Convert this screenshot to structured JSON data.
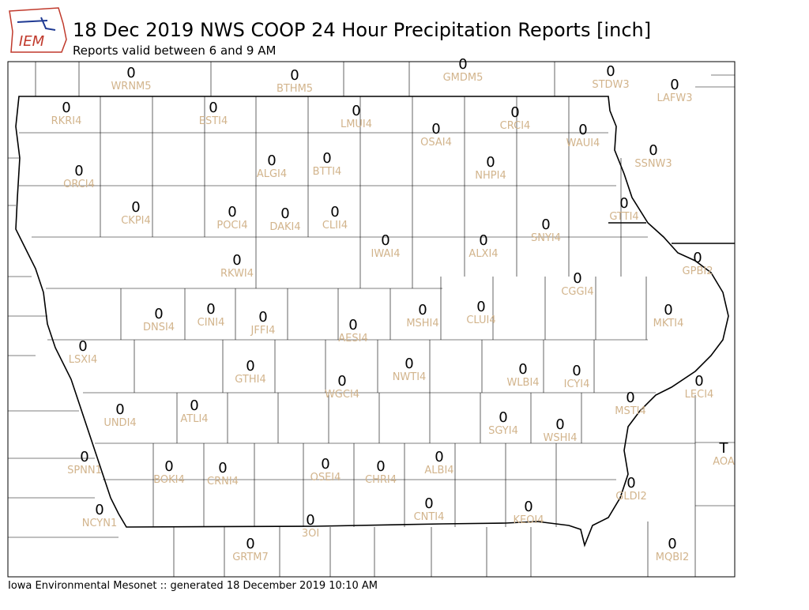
{
  "logo": "IEM",
  "title": "18 Dec 2019 NWS COOP 24 Hour Precipitation Reports [inch]",
  "subtitle": "Reports valid between 6 and 9 AM",
  "footer": "Iowa Environmental Mesonet :: generated 18 December 2019 10:10 AM",
  "stations": [
    {
      "id": "WRNM5",
      "value": 0
    },
    {
      "id": "BTHM5",
      "value": 0
    },
    {
      "id": "GMDM5",
      "value": 0
    },
    {
      "id": "STDW3",
      "value": 0
    },
    {
      "id": "LAFW3",
      "value": 0
    },
    {
      "id": "RKRI4",
      "value": 0
    },
    {
      "id": "ESTI4",
      "value": 0
    },
    {
      "id": "LMUI4",
      "value": 0
    },
    {
      "id": "CRCI4",
      "value": 0
    },
    {
      "id": "OSAI4",
      "value": 0
    },
    {
      "id": "WAUI4",
      "value": 0
    },
    {
      "id": "SSNW3",
      "value": 0
    },
    {
      "id": "ORCI4",
      "value": 0
    },
    {
      "id": "ALGI4",
      "value": 0
    },
    {
      "id": "BTTI4",
      "value": 0
    },
    {
      "id": "NHPI4",
      "value": 0
    },
    {
      "id": "GTTI4",
      "value": 0
    },
    {
      "id": "CKPI4",
      "value": 0
    },
    {
      "id": "POCI4",
      "value": 0
    },
    {
      "id": "DAKI4",
      "value": 0
    },
    {
      "id": "CLII4",
      "value": 0
    },
    {
      "id": "IWAI4",
      "value": 0
    },
    {
      "id": "ALXI4",
      "value": 0
    },
    {
      "id": "SNYI4",
      "value": 0
    },
    {
      "id": "GPBI2",
      "value": 0
    },
    {
      "id": "RKWI4",
      "value": 0
    },
    {
      "id": "CGGI4",
      "value": 0
    },
    {
      "id": "DNSI4",
      "value": 0
    },
    {
      "id": "CINI4",
      "value": 0
    },
    {
      "id": "JFFI4",
      "value": 0
    },
    {
      "id": "AESI4",
      "value": 0
    },
    {
      "id": "MSHI4",
      "value": 0
    },
    {
      "id": "CLUI4",
      "value": 0
    },
    {
      "id": "MKTI4",
      "value": 0
    },
    {
      "id": "LSXI4",
      "value": 0
    },
    {
      "id": "GTHI4",
      "value": 0
    },
    {
      "id": "NWTI4",
      "value": 0
    },
    {
      "id": "WLBI4",
      "value": 0
    },
    {
      "id": "ICYI4",
      "value": 0
    },
    {
      "id": "LECI4",
      "value": 0
    },
    {
      "id": "WGCI4",
      "value": 0
    },
    {
      "id": "MSTI4",
      "value": 0
    },
    {
      "id": "UNDI4",
      "value": 0
    },
    {
      "id": "ATLI4",
      "value": 0
    },
    {
      "id": "SGYI4",
      "value": 0
    },
    {
      "id": "WSHI4",
      "value": 0
    },
    {
      "id": "AOA",
      "value": "T"
    },
    {
      "id": "SPNN1",
      "value": 0
    },
    {
      "id": "BOKI4",
      "value": 0
    },
    {
      "id": "CRNI4",
      "value": 0
    },
    {
      "id": "OSEI4",
      "value": 0
    },
    {
      "id": "CHRI4",
      "value": 0
    },
    {
      "id": "ALBI4",
      "value": 0
    },
    {
      "id": "GLDI2",
      "value": 0
    },
    {
      "id": "CNTI4",
      "value": 0
    },
    {
      "id": "KEOI4",
      "value": 0
    },
    {
      "id": "NCYN1",
      "value": 0
    },
    {
      "id": "3OI",
      "value": 0
    },
    {
      "id": "GRTM7",
      "value": 0
    },
    {
      "id": "MQBI2",
      "value": 0
    }
  ]
}
